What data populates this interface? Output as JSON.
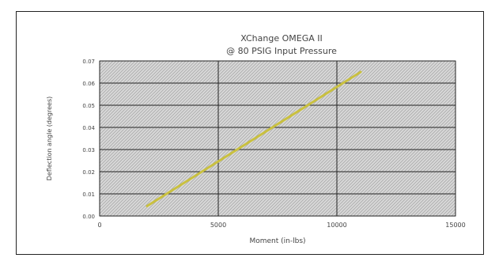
{
  "chart_data": {
    "type": "line",
    "title_line1": "XChange OMEGA II",
    "title_line2": "@ 80 PSIG Input Pressure",
    "xlabel": "Moment (in-lbs)",
    "ylabel": "Deflection angle (degrees)",
    "xlim": [
      0,
      15000
    ],
    "ylim": [
      0,
      0.07
    ],
    "x_ticks": [
      0,
      5000,
      10000,
      15000
    ],
    "x_tick_labels": [
      "0",
      "5000",
      "10000",
      "15000"
    ],
    "y_ticks": [
      0,
      0.01,
      0.02,
      0.03,
      0.04,
      0.05,
      0.06,
      0.07
    ],
    "y_tick_labels": [
      "0.00",
      "0.01",
      "0.02",
      "0.03",
      "0.04",
      "0.05",
      "0.06",
      "0.07"
    ],
    "grid": true,
    "series": [
      {
        "x": [
          2000,
          11000
        ],
        "y": [
          0.0045,
          0.065
        ],
        "color": "#c9c040"
      }
    ]
  }
}
